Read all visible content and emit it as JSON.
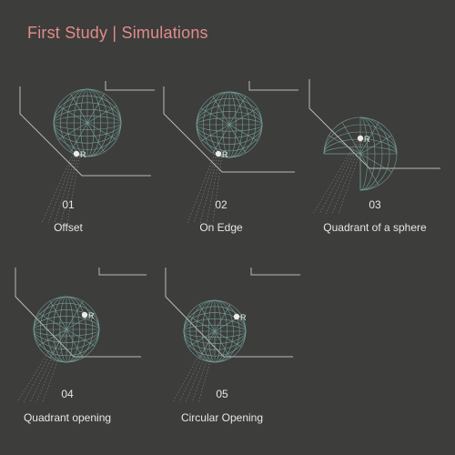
{
  "header": {
    "title": "First Study | Simulations"
  },
  "point_label": "R",
  "colors": {
    "background": "#3d3d3b",
    "title": "#e08c8c",
    "text": "#e6e6e2",
    "mesh": "#7fb7b0",
    "lines": "#b9b9b4"
  },
  "simulations": [
    {
      "number": "01",
      "label": "Offset"
    },
    {
      "number": "02",
      "label": "On Edge"
    },
    {
      "number": "03",
      "label": "Quadrant of a sphere"
    },
    {
      "number": "04",
      "label": "Quadrant opening"
    },
    {
      "number": "05",
      "label": "Circular Opening"
    }
  ]
}
